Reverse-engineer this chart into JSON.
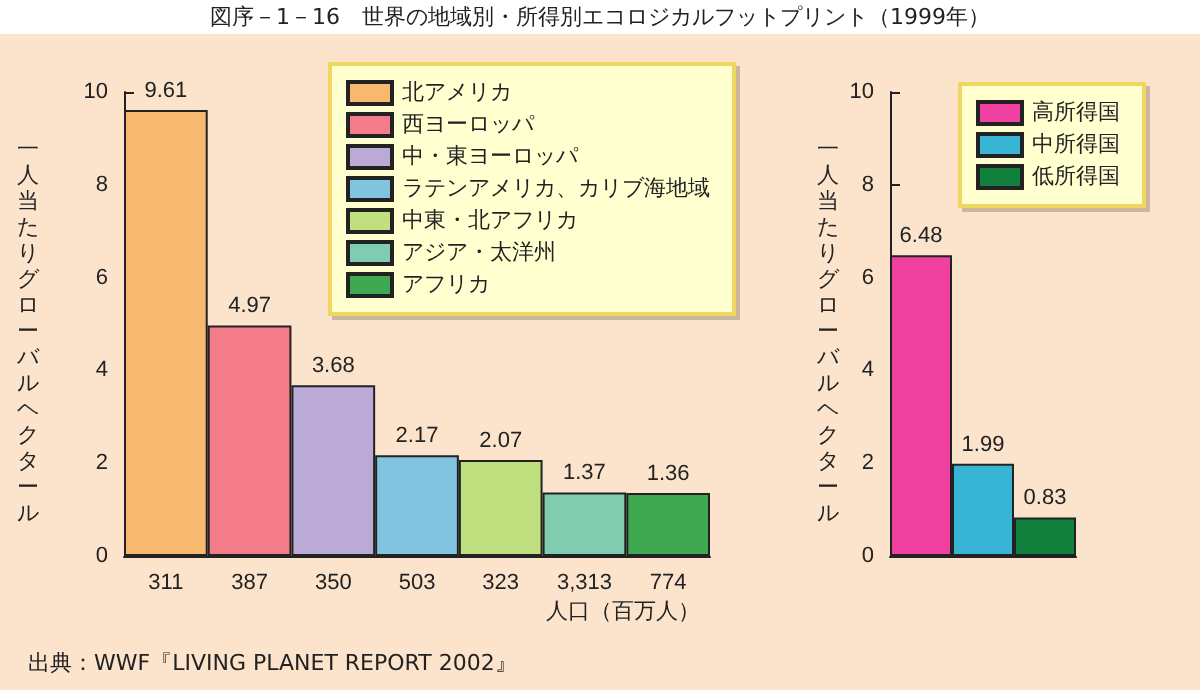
{
  "chart_data": [
    {
      "type": "bar",
      "title": "図序－1－16　世界の地域別・所得別エコロジカルフットプリント（1999年）",
      "ylabel": "一人当たりグローバルヘクタール",
      "xlabel": "人口（百万人）",
      "annotations": [
        "出典：WWF『LIVING PLANET REPORT 2002』"
      ],
      "categories": [
        "311",
        "387",
        "350",
        "503",
        "323",
        "3,313",
        "774"
      ],
      "series": [
        {
          "name": "北アメリカ",
          "color": "#f8b870",
          "values": [
            9.61,
            null,
            null,
            null,
            null,
            null,
            null
          ]
        },
        {
          "name": "西ヨーロッパ",
          "color": "#f47c88",
          "values": [
            null,
            4.97,
            null,
            null,
            null,
            null,
            null
          ]
        },
        {
          "name": "中・東ヨーロッパ",
          "color": "#bcaad6",
          "values": [
            null,
            null,
            3.68,
            null,
            null,
            null,
            null
          ]
        },
        {
          "name": "ラテンアメリカ、カリブ海地域",
          "color": "#80c4e0",
          "values": [
            null,
            null,
            null,
            2.17,
            null,
            null,
            null
          ]
        },
        {
          "name": "中東・北アフリカ",
          "color": "#c0e080",
          "values": [
            null,
            null,
            null,
            null,
            2.07,
            null,
            null
          ]
        },
        {
          "name": "アジア・太洋州",
          "color": "#80ccb0",
          "values": [
            null,
            null,
            null,
            null,
            null,
            1.37,
            null
          ]
        },
        {
          "name": "アフリカ",
          "color": "#40a850",
          "values": [
            null,
            null,
            null,
            null,
            null,
            null,
            1.36
          ]
        }
      ],
      "ylim": [
        0,
        10
      ],
      "yticks": [
        0,
        2,
        4,
        6,
        8,
        10
      ],
      "data_labels": true,
      "legend": "top right"
    },
    {
      "type": "bar",
      "ylabel": "一人当たりグローバルヘクタール",
      "categories": [
        null,
        null,
        null
      ],
      "series": [
        {
          "name": "高所得国",
          "color": "#f040a0",
          "values": [
            6.48,
            null,
            null
          ]
        },
        {
          "name": "中所得国",
          "color": "#38b4d4",
          "values": [
            null,
            1.99,
            null
          ]
        },
        {
          "name": "低所得国",
          "color": "#10803c",
          "values": [
            null,
            null,
            0.83
          ]
        }
      ],
      "ylim": [
        0,
        10
      ],
      "yticks": [
        0,
        2,
        4,
        6,
        8,
        10
      ],
      "data_labels": true,
      "legend": "top right"
    }
  ]
}
